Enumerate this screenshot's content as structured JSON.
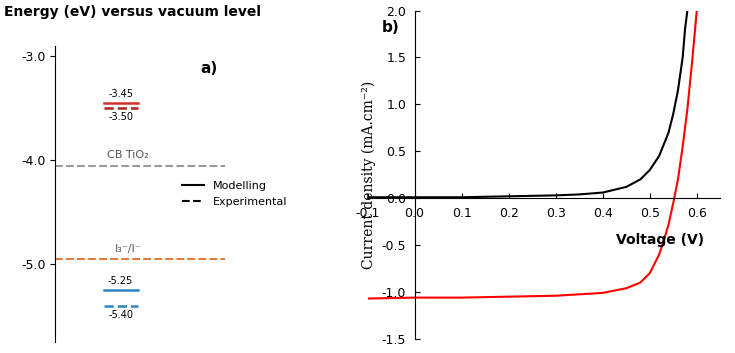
{
  "chart_data": [
    {
      "type": "energy_diagram",
      "title": "Energy (eV) versus vacuum level",
      "panel_label": "a)",
      "ylim": [
        -5.75,
        -2.9
      ],
      "yticks": [
        -3.0,
        -4.0,
        -5.0
      ],
      "tick_labels": "y",
      "levels": [
        {
          "value": -3.45,
          "label": "-3.45",
          "color": "#d0312d",
          "line_style": "solid"
        },
        {
          "value": -3.5,
          "label": "-3.50",
          "color": "#b02020",
          "line_style": "dashed"
        },
        {
          "value": -5.25,
          "label": "-5.25",
          "color": "#2e86c1",
          "line_style": "solid"
        },
        {
          "value": -5.4,
          "label": "-5.40",
          "color": "#2e86c1",
          "line_style": "dashed"
        }
      ],
      "references": [
        {
          "value": -4.05,
          "label": "CB TiO₂",
          "color": "#9a9a9a",
          "line_style": "dashed"
        },
        {
          "value": -4.95,
          "label": "I₃⁻/I⁻",
          "color": "#e07b39",
          "line_style": "dashed"
        }
      ],
      "legend_entries": [
        {
          "name": "Modelling",
          "line_style": "solid",
          "color": "#000000"
        },
        {
          "name": "Experimental",
          "line_style": "dashed",
          "color": "#000000"
        }
      ],
      "legend": "center right"
    },
    {
      "type": "line",
      "panel_label": "b)",
      "x_label": "Voltage (V)",
      "y_label": "Current density (mA.cm⁻²)",
      "xlim": [
        -0.1,
        0.65
      ],
      "xticks": [
        -0.1,
        0.0,
        0.1,
        0.2,
        0.3,
        0.4,
        0.5,
        0.6
      ],
      "ylim": [
        -1.5,
        2.0
      ],
      "yticks": [
        -1.5,
        -1.0,
        -0.5,
        0.0,
        0.5,
        1.0,
        1.5,
        2.0
      ],
      "grid": false,
      "series": [
        {
          "color": "#000000",
          "x": [
            -0.1,
            0.0,
            0.1,
            0.2,
            0.3,
            0.35,
            0.4,
            0.45,
            0.48,
            0.5,
            0.52,
            0.54,
            0.55,
            0.56,
            0.57,
            0.575,
            0.58
          ],
          "values": [
            0.01,
            0.01,
            0.01,
            0.02,
            0.03,
            0.04,
            0.06,
            0.12,
            0.2,
            0.3,
            0.45,
            0.7,
            0.9,
            1.15,
            1.5,
            1.8,
            2.0
          ]
        },
        {
          "color": "#ff0000",
          "x": [
            -0.1,
            0.0,
            0.1,
            0.2,
            0.3,
            0.4,
            0.45,
            0.48,
            0.5,
            0.52,
            0.53,
            0.54,
            0.55,
            0.56,
            0.57,
            0.58,
            0.59,
            0.6
          ],
          "values": [
            -1.07,
            -1.06,
            -1.06,
            -1.05,
            -1.04,
            -1.01,
            -0.96,
            -0.9,
            -0.8,
            -0.6,
            -0.45,
            -0.28,
            -0.05,
            0.2,
            0.55,
            0.95,
            1.45,
            2.0
          ]
        }
      ]
    }
  ]
}
